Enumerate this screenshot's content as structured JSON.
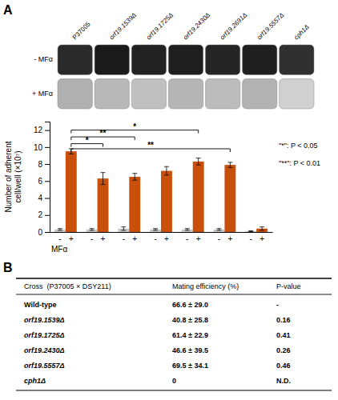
{
  "chart_data": [
    {
      "type": "dish_grid",
      "title": "A",
      "categories": [
        "P37005",
        "orf19.1539Δ",
        "orf19.1725Δ",
        "orf19.2430Δ",
        "orf19.2691Δ",
        "orf19.5557Δ",
        "cph1Δ"
      ],
      "series": [
        {
          "name": "- MFα",
          "colors": [
            "#2a2a2a",
            "#1a1a1a",
            "#222222",
            "#1e1e1e",
            "#252525",
            "#1f1f1f",
            "#303030"
          ]
        },
        {
          "name": "+ MFα",
          "colors": [
            "#b0b0b0",
            "#b8b8b8",
            "#c0c0c0",
            "#b5b5b5",
            "#bcbcbc",
            "#b2b2b2",
            "#d0d0d0"
          ]
        }
      ]
    },
    {
      "type": "bar",
      "categories": [
        null,
        null,
        null,
        null,
        null,
        null,
        null
      ],
      "series": [
        {
          "name": "-",
          "color": "#c8c8c8",
          "values": [
            0.3,
            0.3,
            0.4,
            0.3,
            0.3,
            0.3,
            0.1
          ],
          "errors": [
            0.1,
            0.1,
            0.2,
            0.1,
            0.1,
            0.1,
            0.05
          ]
        },
        {
          "name": "+",
          "color": "#c8500a",
          "values": [
            9.5,
            6.3,
            6.5,
            7.2,
            8.3,
            7.9,
            0.4
          ],
          "errors": [
            0.3,
            0.7,
            0.4,
            0.5,
            0.4,
            0.3,
            0.2
          ]
        }
      ],
      "ylabel": "Number of adherent\ncell/well (×10⁷)",
      "xlabel": "MFα",
      "ylim": [
        0,
        13
      ],
      "yticks": [
        0,
        2,
        4,
        6,
        8,
        10,
        12
      ],
      "grid": false,
      "annotations": [
        {
          "label": "*",
          "from": 0,
          "to": 1,
          "y": 10.4
        },
        {
          "label": "**",
          "from": 0,
          "to": 2,
          "y": 11.2
        },
        {
          "label": "*",
          "from": 0,
          "to": 4,
          "y": 12.0
        },
        {
          "label": "**",
          "from": 0,
          "to": 5,
          "y": 9.8
        }
      ],
      "notes": [
        "\"*\": P < 0.05",
        "\"**\": P < 0.01"
      ]
    },
    {
      "type": "table",
      "title": "B",
      "columns": [
        "Cross  (P37005 × DSY211)",
        "Mating efficiency (%)",
        "P-value"
      ],
      "rows": [
        [
          "Wild-type",
          "66.6 ± 29.0",
          "-"
        ],
        [
          "orf19.1539Δ",
          "40.8 ± 25.8",
          "0.16"
        ],
        [
          "orf19.1725Δ",
          "61.4 ± 22.9",
          "0.41"
        ],
        [
          "orf19.2430Δ",
          "46.6 ± 39.5",
          "0.26"
        ],
        [
          "orf19.5557Δ",
          "69.5 ± 34.1",
          "0.46"
        ],
        [
          "cph1Δ",
          "0",
          "N.D."
        ]
      ]
    }
  ]
}
